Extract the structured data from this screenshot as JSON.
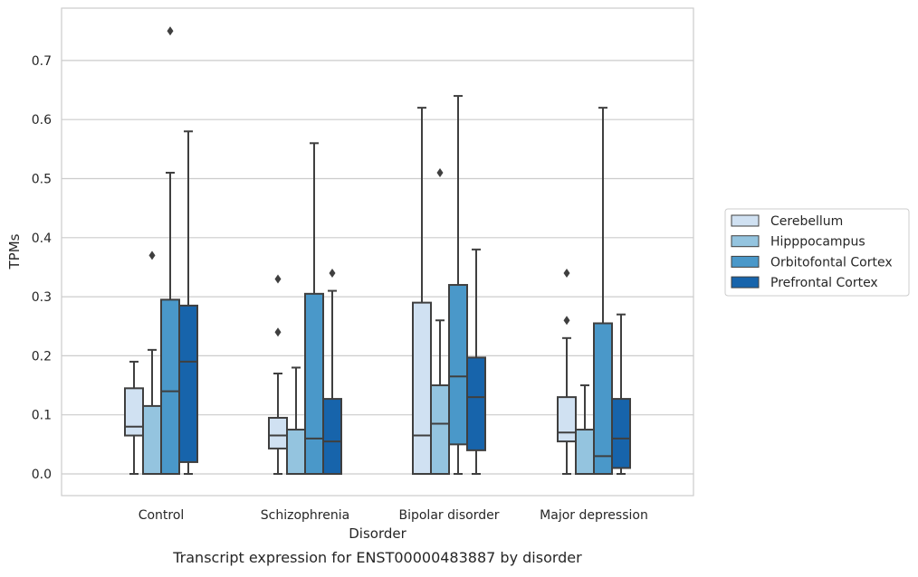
{
  "chart_data": {
    "type": "boxplot",
    "caption": "Transcript expression for ENST00000483887 by disorder",
    "xlabel": "Disorder",
    "ylabel": "TPMs",
    "ylim": [
      -0.036,
      0.79
    ],
    "yticks": [
      "0.0",
      "0.1",
      "0.2",
      "0.3",
      "0.4",
      "0.5",
      "0.6",
      "0.7"
    ],
    "grid": "horizontal",
    "legend_position": "right",
    "categories": [
      "Control",
      "Schizophrenia",
      "Bipolar disorder",
      "Major depression"
    ],
    "series": [
      {
        "name": "Cerebellum",
        "color": "#d0e1f2",
        "boxes": [
          {
            "whislo": 0.0,
            "q1": 0.065,
            "med": 0.08,
            "q3": 0.145,
            "whishi": 0.19,
            "fliers": []
          },
          {
            "whislo": 0.0,
            "q1": 0.043,
            "med": 0.065,
            "q3": 0.095,
            "whishi": 0.17,
            "fliers": [
              0.24,
              0.33
            ]
          },
          {
            "whislo": 0.0,
            "q1": 0.0,
            "med": 0.065,
            "q3": 0.29,
            "whishi": 0.62,
            "fliers": []
          },
          {
            "whislo": 0.0,
            "q1": 0.055,
            "med": 0.07,
            "q3": 0.13,
            "whishi": 0.23,
            "fliers": [
              0.26,
              0.34
            ]
          }
        ]
      },
      {
        "name": "Hipppocampus",
        "color": "#94c4df",
        "boxes": [
          {
            "whislo": 0.0,
            "q1": 0.0,
            "med": 0.0,
            "q3": 0.115,
            "whishi": 0.21,
            "fliers": [
              0.37
            ]
          },
          {
            "whislo": 0.0,
            "q1": 0.0,
            "med": 0.0,
            "q3": 0.075,
            "whishi": 0.18,
            "fliers": []
          },
          {
            "whislo": 0.0,
            "q1": 0.0,
            "med": 0.085,
            "q3": 0.15,
            "whishi": 0.26,
            "fliers": [
              0.51
            ]
          },
          {
            "whislo": 0.0,
            "q1": 0.0,
            "med": 0.0,
            "q3": 0.075,
            "whishi": 0.15,
            "fliers": []
          }
        ]
      },
      {
        "name": "Orbitofontal Cortex",
        "color": "#4a98c9",
        "boxes": [
          {
            "whislo": 0.0,
            "q1": 0.0,
            "med": 0.14,
            "q3": 0.295,
            "whishi": 0.51,
            "fliers": [
              0.75
            ]
          },
          {
            "whislo": 0.0,
            "q1": 0.0,
            "med": 0.06,
            "q3": 0.305,
            "whishi": 0.56,
            "fliers": []
          },
          {
            "whislo": 0.0,
            "q1": 0.05,
            "med": 0.165,
            "q3": 0.32,
            "whishi": 0.64,
            "fliers": []
          },
          {
            "whislo": 0.0,
            "q1": 0.0,
            "med": 0.03,
            "q3": 0.255,
            "whishi": 0.62,
            "fliers": []
          }
        ]
      },
      {
        "name": "Prefrontal Cortex",
        "color": "#1764ab",
        "boxes": [
          {
            "whislo": 0.0,
            "q1": 0.02,
            "med": 0.19,
            "q3": 0.285,
            "whishi": 0.58,
            "fliers": []
          },
          {
            "whislo": 0.0,
            "q1": 0.0,
            "med": 0.055,
            "q3": 0.127,
            "whishi": 0.31,
            "fliers": [
              0.34
            ]
          },
          {
            "whislo": 0.0,
            "q1": 0.04,
            "med": 0.13,
            "q3": 0.197,
            "whishi": 0.38,
            "fliers": []
          },
          {
            "whislo": 0.0,
            "q1": 0.01,
            "med": 0.06,
            "q3": 0.127,
            "whishi": 0.27,
            "fliers": []
          }
        ]
      }
    ]
  }
}
